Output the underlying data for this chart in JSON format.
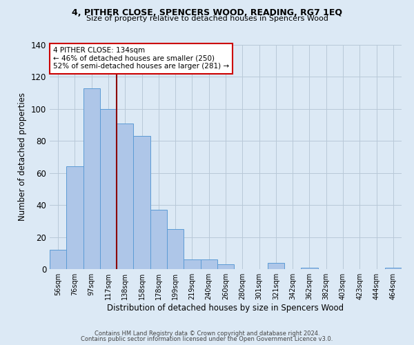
{
  "title": "4, PITHER CLOSE, SPENCERS WOOD, READING, RG7 1EQ",
  "subtitle": "Size of property relative to detached houses in Spencers Wood",
  "xlabel": "Distribution of detached houses by size in Spencers Wood",
  "ylabel": "Number of detached properties",
  "bar_labels": [
    "56sqm",
    "76sqm",
    "97sqm",
    "117sqm",
    "138sqm",
    "158sqm",
    "178sqm",
    "199sqm",
    "219sqm",
    "240sqm",
    "260sqm",
    "280sqm",
    "301sqm",
    "321sqm",
    "342sqm",
    "362sqm",
    "382sqm",
    "403sqm",
    "423sqm",
    "444sqm",
    "464sqm"
  ],
  "bar_values": [
    12,
    64,
    113,
    100,
    91,
    83,
    37,
    25,
    6,
    6,
    3,
    0,
    0,
    4,
    0,
    1,
    0,
    0,
    0,
    0,
    1
  ],
  "bar_color": "#aec6e8",
  "bar_edge_color": "#5b9bd5",
  "background_color": "#dce9f5",
  "ylim": [
    0,
    140
  ],
  "yticks": [
    0,
    20,
    40,
    60,
    80,
    100,
    120,
    140
  ],
  "vline_color": "#8b0000",
  "annotation_title": "4 PITHER CLOSE: 134sqm",
  "annotation_line1": "← 46% of detached houses are smaller (250)",
  "annotation_line2": "52% of semi-detached houses are larger (281) →",
  "annotation_box_color": "#ffffff",
  "annotation_box_edge": "#cc0000",
  "footer1": "Contains HM Land Registry data © Crown copyright and database right 2024.",
  "footer2": "Contains public sector information licensed under the Open Government Licence v3.0."
}
